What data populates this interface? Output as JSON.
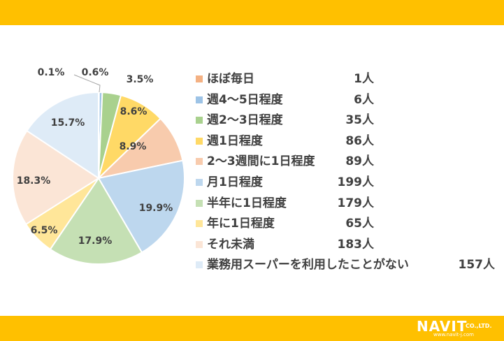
{
  "chart_data": {
    "type": "pie",
    "title": "",
    "categories": [
      "ほぼ毎日",
      "週4～5日程度",
      "週2～3日程度",
      "週1日程度",
      "2～3週間に1日程度",
      "月1日程度",
      "半年に1日程度",
      "年に1日程度",
      "それ未満",
      "業務用スーパーを利用したことがない"
    ],
    "values": [
      1,
      6,
      35,
      86,
      89,
      199,
      179,
      65,
      183,
      157
    ],
    "percent_labels": [
      "0.1%",
      "0.6%",
      "3.5%",
      "8.6%",
      "8.9%",
      "19.9%",
      "17.9%",
      "6.5%",
      "18.3%",
      "15.7%"
    ],
    "count_labels": [
      "1人",
      "6人",
      "35人",
      "86人",
      "89人",
      "199人",
      "179人",
      "65人",
      "183人",
      "157人"
    ],
    "colors": [
      "#f4b183",
      "#9dc3e6",
      "#a9d18e",
      "#ffd966",
      "#f8cbad",
      "#bdd7ee",
      "#c5e0b4",
      "#ffe699",
      "#fbe5d6",
      "#deebf7"
    ],
    "legend_placement": "right",
    "start_angle_deg": 0,
    "direction": "clockwise"
  },
  "logo": {
    "name": "NAVIT",
    "suffix": "CO.,LTD.",
    "url": "www.navit-j.com"
  }
}
